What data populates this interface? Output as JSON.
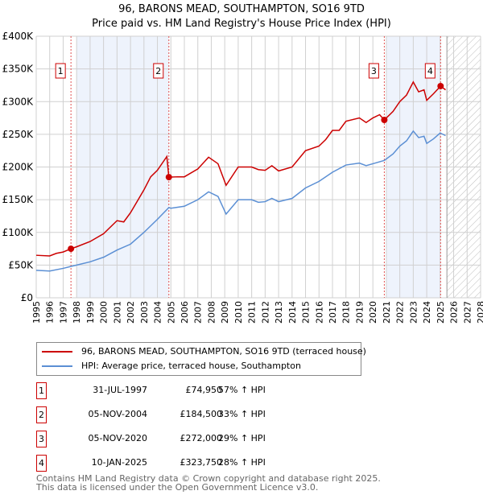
{
  "title": "96, BARONS MEAD, SOUTHAMPTON, SO16 9TD",
  "subtitle": "Price paid vs. HM Land Registry's House Price Index (HPI)",
  "chart_data": {
    "type": "line",
    "xlim": [
      1995,
      2028
    ],
    "ylim": [
      0,
      400000
    ],
    "yticks": [
      {
        "v": 0,
        "label": "£0"
      },
      {
        "v": 50000,
        "label": "£50K"
      },
      {
        "v": 100000,
        "label": "£100K"
      },
      {
        "v": 150000,
        "label": "£150K"
      },
      {
        "v": 200000,
        "label": "£200K"
      },
      {
        "v": 250000,
        "label": "£250K"
      },
      {
        "v": 300000,
        "label": "£300K"
      },
      {
        "v": 350000,
        "label": "£350K"
      },
      {
        "v": 400000,
        "label": "£400K"
      }
    ],
    "xticks": [
      "1995",
      "1996",
      "1997",
      "1998",
      "1999",
      "2000",
      "2001",
      "2002",
      "2003",
      "2004",
      "2005",
      "2006",
      "2007",
      "2008",
      "2009",
      "2010",
      "2011",
      "2012",
      "2013",
      "2014",
      "2015",
      "2016",
      "2017",
      "2018",
      "2019",
      "2020",
      "2021",
      "2022",
      "2023",
      "2024",
      "2025",
      "2026",
      "2027",
      "2028"
    ],
    "series": [
      {
        "name": "96, BARONS MEAD, SOUTHAMPTON, SO16 9TD (terraced house)",
        "color": "#cc0000",
        "x": [
          1995,
          1996,
          1996.5,
          1997,
          1997.58,
          1998,
          1999,
          2000,
          2001,
          2001.5,
          2002,
          2003,
          2003.5,
          2004,
          2004.7,
          2004.85,
          2005.5,
          2006,
          2007,
          2007.8,
          2008.5,
          2009.1,
          2010,
          2011,
          2011.5,
          2012,
          2012.5,
          2013,
          2014,
          2015,
          2016,
          2016.5,
          2017,
          2017.5,
          2018,
          2019,
          2019.5,
          2020,
          2020.5,
          2020.85,
          2021.5,
          2022,
          2022.5,
          2023,
          2023.4,
          2023.8,
          2024,
          2024.5,
          2025.03,
          2025.4
        ],
        "y": [
          65000,
          64000,
          68000,
          70000,
          74950,
          78000,
          86000,
          98000,
          118000,
          116000,
          130000,
          165000,
          185000,
          195000,
          216000,
          184500,
          185000,
          185000,
          197000,
          215000,
          205000,
          172000,
          200000,
          200000,
          196000,
          195000,
          202000,
          194000,
          200000,
          225000,
          232000,
          242000,
          256000,
          256000,
          270000,
          275000,
          268000,
          275000,
          280000,
          272000,
          285000,
          300000,
          310000,
          330000,
          315000,
          318000,
          302000,
          312000,
          323750,
          318000
        ]
      },
      {
        "name": "HPI: Average price, terraced house, Southampton",
        "color": "#5b8fd4",
        "x": [
          1995,
          1996,
          1997,
          1997.58,
          1998,
          1999,
          2000,
          2001,
          2002,
          2003,
          2004,
          2004.85,
          2005,
          2006,
          2007,
          2007.8,
          2008.5,
          2009.1,
          2010,
          2011,
          2011.5,
          2012,
          2012.5,
          2013,
          2014,
          2015,
          2016,
          2017,
          2018,
          2019,
          2019.5,
          2020,
          2020.85,
          2021.5,
          2022,
          2022.5,
          2023,
          2023.4,
          2023.8,
          2024,
          2024.5,
          2025,
          2025.4
        ],
        "y": [
          42000,
          41000,
          45000,
          48000,
          50000,
          55000,
          62000,
          73000,
          82000,
          100000,
          120000,
          138000,
          137000,
          140000,
          150000,
          162000,
          155000,
          128000,
          150000,
          150000,
          146000,
          147000,
          152000,
          147000,
          152000,
          168000,
          178000,
          192000,
          203000,
          206000,
          202000,
          205000,
          210000,
          220000,
          232000,
          240000,
          255000,
          245000,
          247000,
          236000,
          243000,
          252000,
          248000
        ]
      }
    ],
    "sales": [
      {
        "n": "1",
        "x": 1997.58,
        "y": 74950
      },
      {
        "n": "2",
        "x": 2004.85,
        "y": 184500
      },
      {
        "n": "3",
        "x": 2020.85,
        "y": 272000
      },
      {
        "n": "4",
        "x": 2025.03,
        "y": 323750
      }
    ],
    "shaded": [
      [
        1998,
        2004.85
      ],
      [
        2021,
        2025.03
      ]
    ],
    "forecast_from": 2025.5
  },
  "legend": [
    "96, BARONS MEAD, SOUTHAMPTON, SO16 9TD (terraced house)",
    "HPI: Average price, terraced house, Southampton"
  ],
  "table": [
    {
      "n": "1",
      "date": "31-JUL-1997",
      "price": "£74,950",
      "hpi": "57% ↑ HPI"
    },
    {
      "n": "2",
      "date": "05-NOV-2004",
      "price": "£184,500",
      "hpi": "33% ↑ HPI"
    },
    {
      "n": "3",
      "date": "05-NOV-2020",
      "price": "£272,000",
      "hpi": "29% ↑ HPI"
    },
    {
      "n": "4",
      "date": "10-JAN-2025",
      "price": "£323,750",
      "hpi": "28% ↑ HPI"
    }
  ],
  "footer": [
    "Contains HM Land Registry data © Crown copyright and database right 2025.",
    "This data is licensed under the Open Government Licence v3.0."
  ]
}
